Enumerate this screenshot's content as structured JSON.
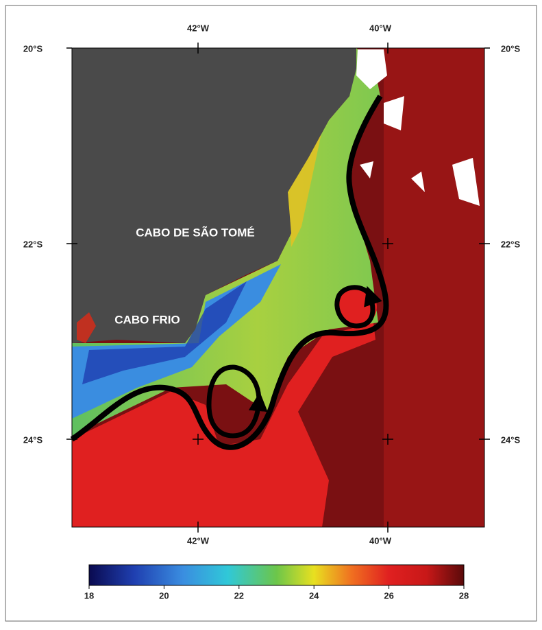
{
  "map": {
    "longitude_labels": [
      "42°W",
      "40°W"
    ],
    "latitude_labels": [
      "20°S",
      "22°S",
      "24°S"
    ],
    "place_labels": [
      "CABO DE SÃO TOMÉ",
      "CABO FRIO"
    ]
  },
  "colorbar": {
    "ticks": [
      18,
      20,
      22,
      24,
      26,
      28
    ]
  }
}
